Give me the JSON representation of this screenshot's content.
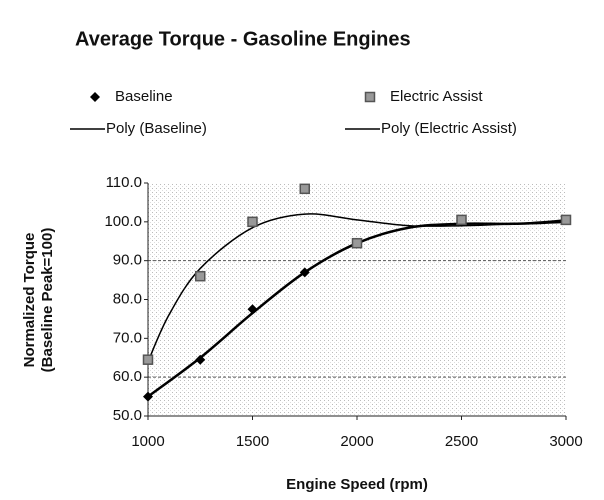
{
  "chart_data": {
    "type": "scatter",
    "title": "Average Torque - Gasoline Engines",
    "xlabel": "Engine Speed (rpm)",
    "ylabel": [
      "Normalized Torque",
      "(Baseline Peak=100)"
    ],
    "xlim": [
      1000,
      3000
    ],
    "xticks": [
      1000,
      1500,
      2000,
      2500,
      3000
    ],
    "ylim": [
      50,
      110
    ],
    "yticks": [
      {
        "value": 50,
        "label": "50.0"
      },
      {
        "value": 60,
        "label": "60.0"
      },
      {
        "value": 70,
        "label": "70.0"
      },
      {
        "value": 80,
        "label": "80.0"
      },
      {
        "value": 90,
        "label": "90.0"
      },
      {
        "value": 100,
        "label": "100.0"
      },
      {
        "value": 110,
        "label": "110.0"
      }
    ],
    "grid_y": [
      60,
      90
    ],
    "series": [
      {
        "name": "Baseline",
        "color": "#000000",
        "marker": "diamond",
        "x": [
          1000,
          1250,
          1500,
          1750,
          2000,
          2500,
          3000
        ],
        "values": [
          55,
          64.5,
          77.5,
          87,
          94.5,
          100,
          100.5
        ]
      },
      {
        "name": "Electric Assist",
        "color": "#555555",
        "marker": "square",
        "x": [
          1000,
          1250,
          1500,
          1750,
          2000,
          2500,
          3000
        ],
        "values": [
          64.5,
          86,
          100,
          108.5,
          94.5,
          100.5,
          100.5
        ]
      },
      {
        "name": "Poly  (Baseline)",
        "color": "#000000",
        "marker": "line",
        "x": [
          1000,
          1250,
          1500,
          1750,
          2000,
          2250,
          2500,
          2750,
          3000
        ],
        "values": [
          55,
          65,
          76.5,
          87,
          94.5,
          98.5,
          99.5,
          99.5,
          100
        ]
      },
      {
        "name": "Poly  (Electric Assist)",
        "color": "#000000",
        "marker": "line",
        "x": [
          1000,
          1100,
          1250,
          1500,
          1750,
          2000,
          2250,
          2500,
          2750,
          3000
        ],
        "values": [
          64,
          76,
          88,
          98.5,
          102,
          100.5,
          99,
          99,
          99.5,
          100.5
        ]
      }
    ]
  }
}
